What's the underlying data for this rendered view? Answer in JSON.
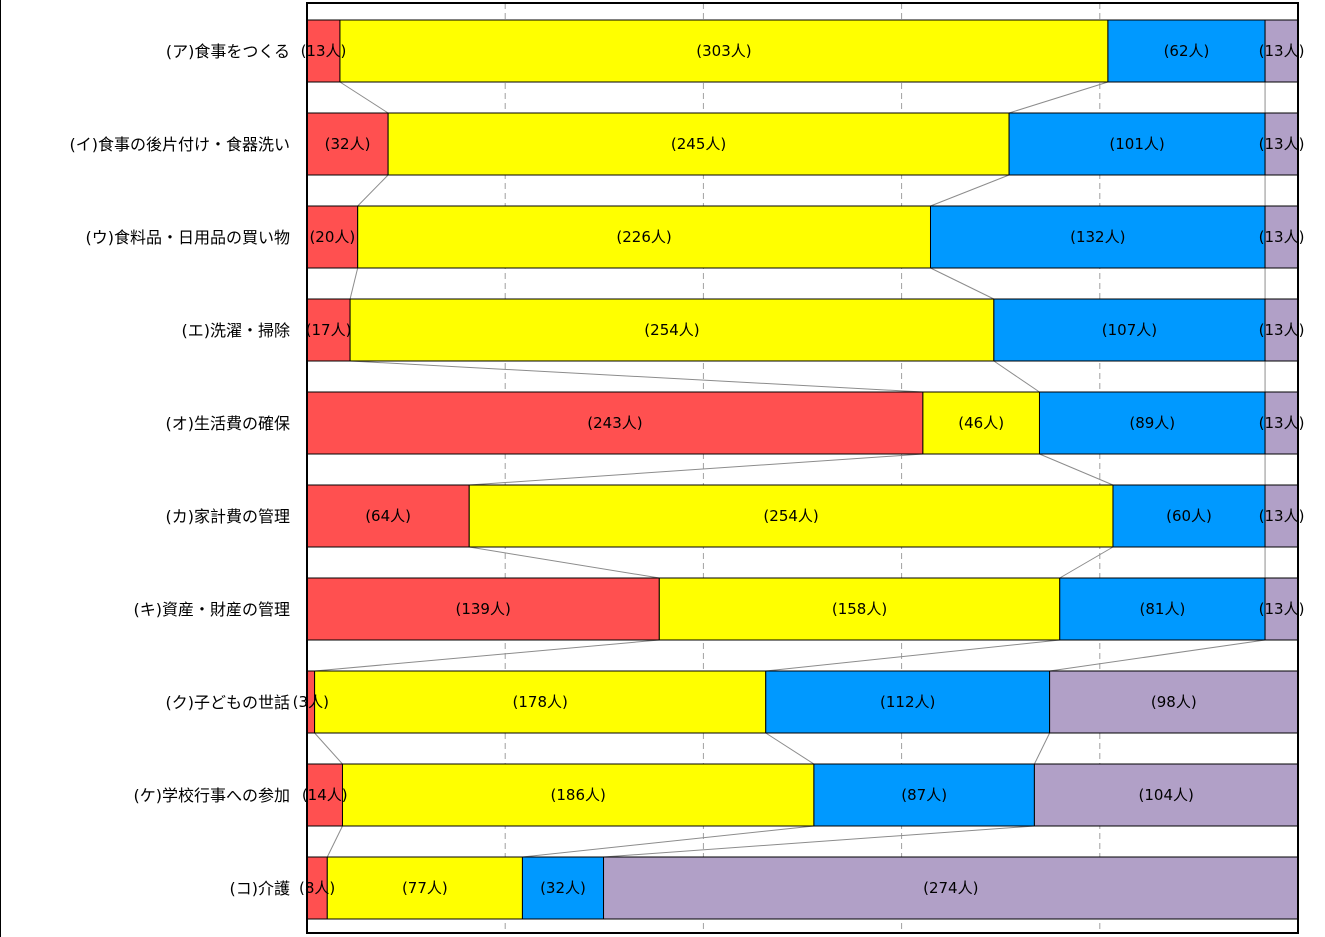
{
  "chart_data": {
    "type": "bar",
    "orientation": "horizontal",
    "stacked": "percent",
    "title": "",
    "xlabel": "",
    "ylabel": "",
    "grid": true,
    "legend": "none",
    "series_lines": true,
    "categories": [
      "(ア)食事をつくる",
      "(イ)食事の後片付け・食器洗い",
      "(ウ)食料品・日用品の買い物",
      "(エ)洗濯・掃除",
      "(オ)生活費の確保",
      "(カ)家計費の管理",
      "(キ)資産・財産の管理",
      "(ク)子どもの世話",
      "(ケ)学校行事への参加",
      "(コ)介護"
    ],
    "series": [
      {
        "color": "#ff5050",
        "values": [
          13,
          32,
          20,
          17,
          243,
          64,
          139,
          3,
          14,
          8
        ],
        "labels": [
          "(13人)",
          "(32人)",
          "(20人)",
          "(17人)",
          "(243人)",
          "(64人)",
          "(139人)",
          "(3人)",
          "(14人)",
          "(8人)"
        ]
      },
      {
        "color": "#ffff00",
        "values": [
          303,
          245,
          226,
          254,
          46,
          254,
          158,
          178,
          186,
          77
        ],
        "labels": [
          "(303人)",
          "(245人)",
          "(226人)",
          "(254人)",
          "(46人)",
          "(254人)",
          "(158人)",
          "(178人)",
          "(186人)",
          "(77人)"
        ]
      },
      {
        "color": "#0099ff",
        "values": [
          62,
          101,
          132,
          107,
          89,
          60,
          81,
          112,
          87,
          32
        ],
        "labels": [
          "(62人)",
          "(101人)",
          "(132人)",
          "(107人)",
          "(89人)",
          "(60人)",
          "(81人)",
          "(112人)",
          "(87人)",
          "(32人)"
        ]
      },
      {
        "color": "#b1a0c7",
        "values": [
          13,
          13,
          13,
          13,
          13,
          13,
          13,
          98,
          104,
          274
        ],
        "labels": [
          "(13人)",
          "(13人)",
          "(13人)",
          "(13人)",
          "(13人)",
          "(13人)",
          "(13人)",
          "(98人)",
          "(104人)",
          "(274人)"
        ]
      }
    ]
  }
}
